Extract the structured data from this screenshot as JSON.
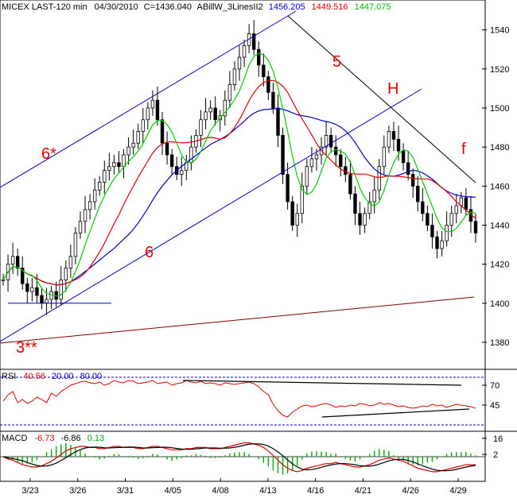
{
  "colors": {
    "price": "#000000",
    "ma_blue": "#0000cc",
    "ma_red": "#e00000",
    "ma_green": "#00cc00",
    "channel": "#0000cc",
    "support": "#800000",
    "annotation": "#e60000",
    "rsi_line": "#e00000",
    "rsi_levels": "#0000cc",
    "macd_hist": "#00aa00"
  },
  "chart_data": [
    {
      "type": "candlestick",
      "title": "MICEX LAST-120 min",
      "date": "04/30/2010",
      "close_label": "C=1436.040",
      "indicator_name": "ABillW_3LinesII2",
      "indicator_values": [
        "1456.205",
        "1449.516",
        "1447.075"
      ],
      "y_ticks": [
        1380,
        1400,
        1420,
        1440,
        1460,
        1480,
        1500,
        1520,
        1540
      ],
      "ylim": [
        1369,
        1548
      ],
      "x_ticks": [
        "3/23",
        "3/26",
        "3/31",
        "4/05",
        "4/08",
        "4/13",
        "4/16",
        "4/21",
        "4/26",
        "4/29"
      ],
      "annotations": [
        {
          "label": "6*"
        },
        {
          "label": "6"
        },
        {
          "label": "5"
        },
        {
          "label": "H"
        },
        {
          "label": "f"
        },
        {
          "label": "3**"
        }
      ],
      "close_path": [
        1412,
        1420,
        1424,
        1418,
        1410,
        1406,
        1408,
        1404,
        1400,
        1402,
        1406,
        1402,
        1412,
        1418,
        1424,
        1436,
        1442,
        1448,
        1452,
        1458,
        1462,
        1468,
        1470,
        1472,
        1470,
        1476,
        1480,
        1482,
        1488,
        1494,
        1500,
        1504,
        1494,
        1482,
        1476,
        1470,
        1466,
        1468,
        1472,
        1480,
        1486,
        1494,
        1498,
        1500,
        1494,
        1496,
        1504,
        1512,
        1520,
        1526,
        1532,
        1538,
        1530,
        1522,
        1516,
        1508,
        1500,
        1486,
        1466,
        1452,
        1440,
        1446,
        1460,
        1470,
        1474,
        1476,
        1480,
        1486,
        1480,
        1476,
        1470,
        1466,
        1456,
        1446,
        1440,
        1446,
        1452,
        1458,
        1470,
        1480,
        1488,
        1484,
        1478,
        1472,
        1466,
        1460,
        1452,
        1446,
        1440,
        1434,
        1428,
        1432,
        1440,
        1446,
        1450,
        1454,
        1448,
        1442,
        1436
      ]
    },
    {
      "type": "line",
      "name": "RSI",
      "rsi_label": "RSI",
      "values_labels": [
        "40.56",
        "20.00",
        "80.00"
      ],
      "y_ticks": [
        45,
        70
      ],
      "ylim": [
        15,
        85
      ],
      "path": [
        50,
        58,
        62,
        48,
        52,
        47,
        50,
        55,
        52,
        48,
        60,
        56,
        62,
        66,
        70,
        72,
        74,
        75,
        73,
        72,
        74,
        70,
        72,
        76,
        74,
        73,
        76,
        75,
        72,
        73,
        74,
        76,
        72,
        73,
        74,
        70,
        72,
        73,
        76,
        74,
        73,
        75,
        72,
        73,
        72,
        70,
        73,
        72,
        71,
        72,
        73,
        74,
        72,
        68,
        62,
        58,
        46,
        38,
        32,
        30,
        36,
        40,
        44,
        45,
        43,
        44,
        46,
        47,
        45,
        42,
        44,
        43,
        45,
        44,
        47,
        46,
        44,
        45,
        48,
        46,
        47,
        45,
        43,
        44,
        42,
        41,
        42,
        44,
        43,
        46,
        44,
        45,
        42,
        44,
        46,
        45,
        44,
        43,
        41
      ]
    },
    {
      "type": "line",
      "name": "MACD",
      "macd_label": "MACD",
      "values_labels": [
        "-6.73",
        "-6.86",
        "0.13"
      ],
      "y_ticks": [
        2,
        16
      ],
      "ylim": [
        -20,
        20
      ],
      "path": [
        0,
        -2,
        -3,
        -5,
        -7,
        -8,
        -9,
        -9,
        -8,
        -6,
        -4,
        -1,
        2,
        5,
        7,
        8,
        9,
        9,
        8,
        8,
        7,
        7,
        8,
        9,
        9,
        8,
        8,
        8,
        7,
        7,
        8,
        9,
        9,
        8,
        7,
        6,
        6,
        6,
        7,
        7,
        8,
        8,
        8,
        7,
        7,
        7,
        8,
        9,
        10,
        11,
        12,
        12,
        11,
        10,
        8,
        5,
        1,
        -3,
        -7,
        -10,
        -12,
        -13,
        -12,
        -10,
        -9,
        -8,
        -7,
        -6,
        -6,
        -5,
        -6,
        -7,
        -8,
        -9,
        -9,
        -8,
        -7,
        -5,
        -3,
        -2,
        -1,
        -2,
        -3,
        -4,
        -6,
        -8,
        -10,
        -11,
        -12,
        -13,
        -13,
        -12,
        -11,
        -10,
        -9,
        -8,
        -7,
        -7,
        -7
      ]
    }
  ]
}
